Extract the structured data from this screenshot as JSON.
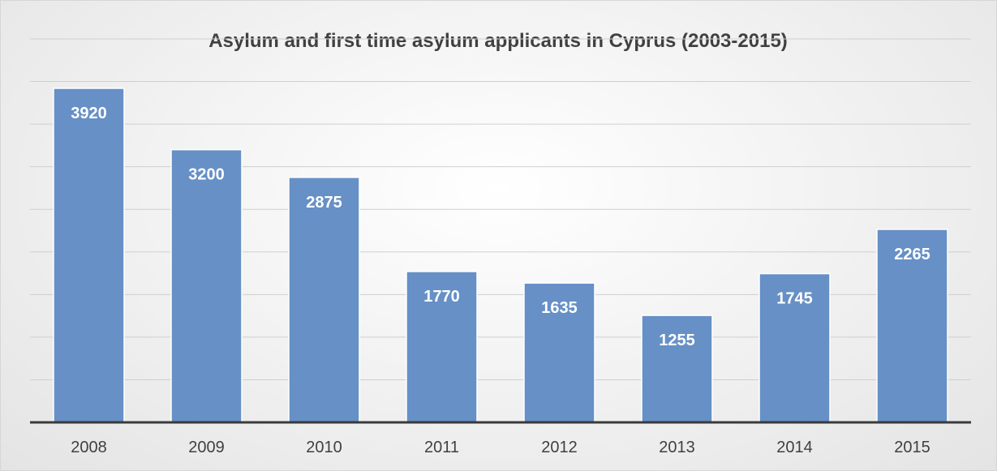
{
  "chart_data": {
    "type": "bar",
    "title": "Asylum and first time asylum applicants in Cyprus (2003-2015)",
    "categories": [
      "2008",
      "2009",
      "2010",
      "2011",
      "2012",
      "2013",
      "2014",
      "2015"
    ],
    "values": [
      3920,
      3200,
      2875,
      1770,
      1635,
      1255,
      1745,
      2265
    ],
    "ylim": [
      0,
      4500
    ],
    "ygrid_step": 500,
    "grid": true,
    "data_labels": true,
    "legend": false,
    "colors": {
      "bar": "#6690c6",
      "axis": "#3a3a3a",
      "grid": "#cfcfcf"
    }
  }
}
